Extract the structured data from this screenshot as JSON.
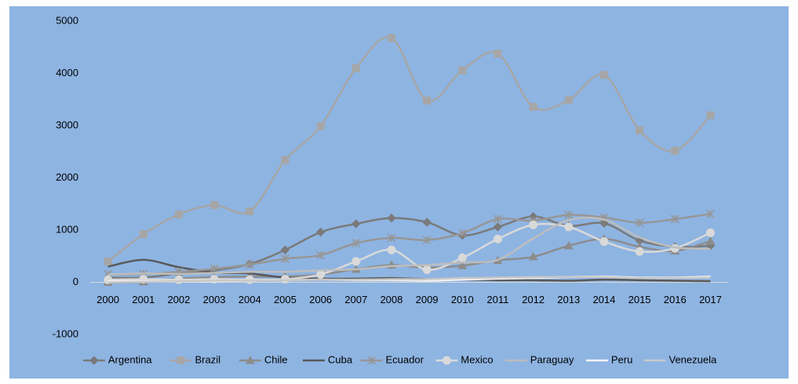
{
  "chart_data": {
    "type": "line",
    "categories": [
      "2000",
      "2001",
      "2002",
      "2003",
      "2004",
      "2005",
      "2006",
      "2007",
      "2008",
      "2009",
      "2010",
      "2011",
      "2012",
      "2013",
      "2014",
      "2015",
      "2016",
      "2017"
    ],
    "ylim": [
      -1000,
      5000
    ],
    "yticks": [
      -1000,
      0,
      1000,
      2000,
      3000,
      4000,
      5000
    ],
    "smooth": true,
    "grid": false,
    "legend": "bottom",
    "series": [
      {
        "name": "Argentina",
        "color": "#7a7a7a",
        "marker": "diamond",
        "values": [
          90,
          90,
          170,
          230,
          350,
          620,
          960,
          1120,
          1230,
          1150,
          900,
          1060,
          1260,
          1080,
          1130,
          800,
          680,
          700
        ]
      },
      {
        "name": "Brazil",
        "color": "#a6a6a6",
        "marker": "square",
        "values": [
          400,
          920,
          1300,
          1480,
          1360,
          2340,
          2990,
          4100,
          4680,
          3480,
          4060,
          4380,
          3360,
          3490,
          3970,
          2910,
          2520,
          3200
        ]
      },
      {
        "name": "Chile",
        "color": "#8c8c8c",
        "marker": "triangle",
        "values": [
          0,
          10,
          70,
          100,
          110,
          110,
          150,
          250,
          330,
          280,
          320,
          420,
          490,
          700,
          830,
          680,
          600,
          790
        ]
      },
      {
        "name": "Cuba",
        "color": "#595959",
        "marker": "none",
        "values": [
          300,
          430,
          290,
          190,
          170,
          90,
          70,
          70,
          80,
          60,
          50,
          40,
          40,
          30,
          50,
          40,
          30,
          20
        ]
      },
      {
        "name": "Ecuador",
        "color": "#969696",
        "marker": "star",
        "values": [
          150,
          160,
          200,
          260,
          340,
          450,
          520,
          750,
          850,
          810,
          940,
          1210,
          1180,
          1290,
          1240,
          1140,
          1210,
          1310
        ]
      },
      {
        "name": "Mexico",
        "color": "#d9d9d9",
        "marker": "circle",
        "values": [
          50,
          60,
          50,
          60,
          50,
          60,
          150,
          400,
          620,
          240,
          470,
          830,
          1100,
          1060,
          780,
          590,
          650,
          950
        ]
      },
      {
        "name": "Paraguay",
        "color": "#bdbdbd",
        "marker": "none",
        "values": [
          150,
          170,
          160,
          180,
          200,
          200,
          230,
          250,
          310,
          330,
          380,
          430,
          840,
          1190,
          1200,
          860,
          670,
          640
        ]
      },
      {
        "name": "Peru",
        "color": "#f2f2f2",
        "marker": "none",
        "values": [
          20,
          20,
          20,
          20,
          30,
          40,
          50,
          40,
          40,
          30,
          50,
          70,
          80,
          100,
          110,
          90,
          90,
          110
        ]
      },
      {
        "name": "Venezuela",
        "color": "#c8c8c8",
        "marker": "none",
        "values": [
          0,
          10,
          20,
          30,
          30,
          40,
          50,
          50,
          60,
          60,
          80,
          90,
          100,
          100,
          100,
          80,
          80,
          90
        ]
      }
    ]
  }
}
